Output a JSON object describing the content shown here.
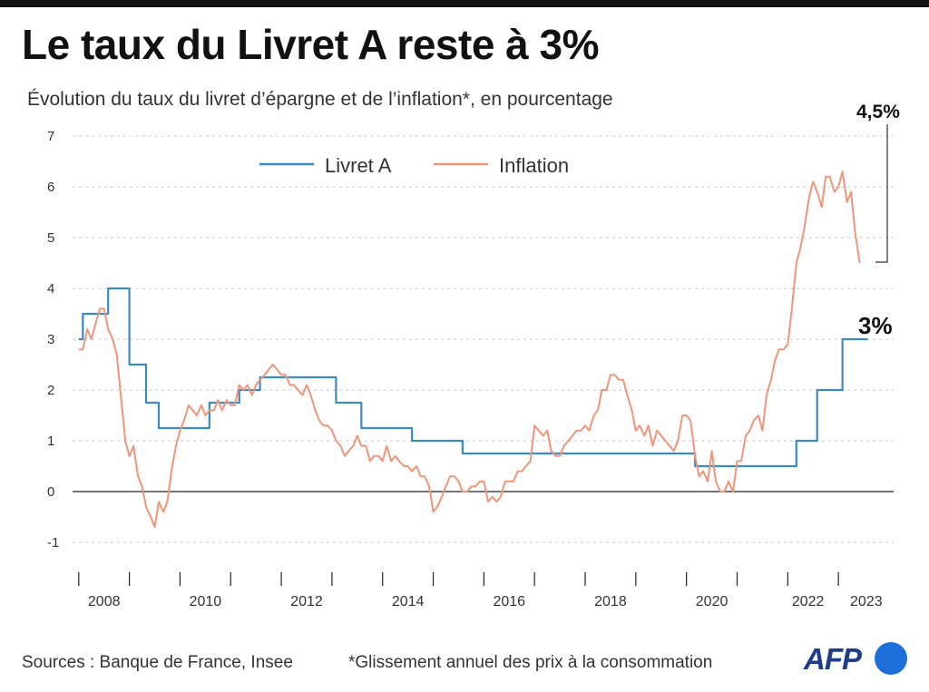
{
  "header": {
    "title": "Le taux du Livret A reste à 3%",
    "subtitle": "Évolution du taux du livret d’épargne et de l’inflation*, en pourcentage"
  },
  "colors": {
    "livret": "#3b8bc2",
    "inflation": "#f0957a",
    "grid": "#c8c8c8",
    "axis": "#222222"
  },
  "chart_data": {
    "type": "line",
    "title": "Le taux du Livret A reste à 3%",
    "subtitle": "Évolution du taux du livret d’épargne et de l’inflation*, en pourcentage",
    "xlabel": "",
    "ylabel": "",
    "xlim": [
      2007.95,
      2023.75
    ],
    "ylim": [
      -1,
      7
    ],
    "yticks": [
      -1,
      0,
      1,
      2,
      3,
      4,
      5,
      6,
      7
    ],
    "yticklabels": [
      "-1",
      "0",
      "1",
      "2",
      "3",
      "4",
      "5",
      "6",
      "7"
    ],
    "xticks": [
      2008,
      2009,
      2010,
      2011,
      2012,
      2013,
      2014,
      2015,
      2016,
      2017,
      2018,
      2019,
      2020,
      2021,
      2022,
      2023
    ],
    "xticklabels": [
      {
        "label": "2008",
        "at": 2008.5
      },
      {
        "label": "2010",
        "at": 2010.5
      },
      {
        "label": "2012",
        "at": 2012.5
      },
      {
        "label": "2014",
        "at": 2014.5
      },
      {
        "label": "2016",
        "at": 2016.5
      },
      {
        "label": "2018",
        "at": 2018.5
      },
      {
        "label": "2020",
        "at": 2020.5
      },
      {
        "label": "2022",
        "at": 2022.4
      },
      {
        "label": "2023",
        "at": 2023.55
      }
    ],
    "grid": true,
    "legend": {
      "placement": "top-left",
      "entries": [
        "Livret A",
        "Inflation"
      ]
    },
    "annotations": {
      "inflation_end": "4,5%",
      "livret_end": "3%"
    },
    "series": [
      {
        "name": "Livret A",
        "step": true,
        "points": [
          [
            2008.0,
            3.0
          ],
          [
            2008.08,
            3.5
          ],
          [
            2008.58,
            4.0
          ],
          [
            2009.0,
            2.5
          ],
          [
            2009.33,
            1.75
          ],
          [
            2009.58,
            1.25
          ],
          [
            2010.58,
            1.75
          ],
          [
            2011.17,
            2.0
          ],
          [
            2011.58,
            2.25
          ],
          [
            2013.08,
            1.75
          ],
          [
            2013.58,
            1.25
          ],
          [
            2014.58,
            1.0
          ],
          [
            2015.58,
            0.75
          ],
          [
            2020.17,
            0.5
          ],
          [
            2022.17,
            1.0
          ],
          [
            2022.58,
            2.0
          ],
          [
            2023.08,
            3.0
          ],
          [
            2023.58,
            3.0
          ]
        ]
      },
      {
        "name": "Inflation",
        "step": false,
        "points": [
          [
            2008.0,
            2.8
          ],
          [
            2008.08,
            2.8
          ],
          [
            2008.17,
            3.2
          ],
          [
            2008.25,
            3.0
          ],
          [
            2008.33,
            3.3
          ],
          [
            2008.42,
            3.6
          ],
          [
            2008.5,
            3.6
          ],
          [
            2008.58,
            3.2
          ],
          [
            2008.67,
            3.0
          ],
          [
            2008.75,
            2.7
          ],
          [
            2008.83,
            1.9
          ],
          [
            2008.92,
            1.0
          ],
          [
            2009.0,
            0.7
          ],
          [
            2009.08,
            0.9
          ],
          [
            2009.17,
            0.3
          ],
          [
            2009.25,
            0.1
          ],
          [
            2009.33,
            -0.3
          ],
          [
            2009.42,
            -0.5
          ],
          [
            2009.5,
            -0.7
          ],
          [
            2009.58,
            -0.2
          ],
          [
            2009.67,
            -0.4
          ],
          [
            2009.75,
            -0.2
          ],
          [
            2009.83,
            0.4
          ],
          [
            2009.92,
            0.9
          ],
          [
            2010.0,
            1.2
          ],
          [
            2010.08,
            1.4
          ],
          [
            2010.17,
            1.7
          ],
          [
            2010.25,
            1.6
          ],
          [
            2010.33,
            1.5
          ],
          [
            2010.42,
            1.7
          ],
          [
            2010.5,
            1.5
          ],
          [
            2010.58,
            1.6
          ],
          [
            2010.67,
            1.6
          ],
          [
            2010.75,
            1.8
          ],
          [
            2010.83,
            1.6
          ],
          [
            2010.92,
            1.8
          ],
          [
            2011.0,
            1.7
          ],
          [
            2011.08,
            1.7
          ],
          [
            2011.17,
            2.1
          ],
          [
            2011.25,
            2.0
          ],
          [
            2011.33,
            2.1
          ],
          [
            2011.42,
            1.9
          ],
          [
            2011.5,
            2.1
          ],
          [
            2011.58,
            2.2
          ],
          [
            2011.67,
            2.3
          ],
          [
            2011.75,
            2.4
          ],
          [
            2011.83,
            2.5
          ],
          [
            2011.92,
            2.4
          ],
          [
            2012.0,
            2.3
          ],
          [
            2012.08,
            2.3
          ],
          [
            2012.17,
            2.1
          ],
          [
            2012.25,
            2.1
          ],
          [
            2012.33,
            2.0
          ],
          [
            2012.42,
            1.9
          ],
          [
            2012.5,
            2.1
          ],
          [
            2012.58,
            1.9
          ],
          [
            2012.67,
            1.6
          ],
          [
            2012.75,
            1.4
          ],
          [
            2012.83,
            1.3
          ],
          [
            2012.92,
            1.3
          ],
          [
            2013.0,
            1.2
          ],
          [
            2013.08,
            1.0
          ],
          [
            2013.17,
            0.9
          ],
          [
            2013.25,
            0.7
          ],
          [
            2013.33,
            0.8
          ],
          [
            2013.42,
            0.9
          ],
          [
            2013.5,
            1.1
          ],
          [
            2013.58,
            0.9
          ],
          [
            2013.67,
            0.9
          ],
          [
            2013.75,
            0.6
          ],
          [
            2013.83,
            0.7
          ],
          [
            2013.92,
            0.7
          ],
          [
            2014.0,
            0.6
          ],
          [
            2014.08,
            0.9
          ],
          [
            2014.17,
            0.6
          ],
          [
            2014.25,
            0.7
          ],
          [
            2014.33,
            0.6
          ],
          [
            2014.42,
            0.5
          ],
          [
            2014.5,
            0.5
          ],
          [
            2014.58,
            0.4
          ],
          [
            2014.67,
            0.5
          ],
          [
            2014.75,
            0.3
          ],
          [
            2014.83,
            0.3
          ],
          [
            2014.92,
            0.1
          ],
          [
            2015.0,
            -0.4
          ],
          [
            2015.08,
            -0.3
          ],
          [
            2015.17,
            -0.1
          ],
          [
            2015.25,
            0.1
          ],
          [
            2015.33,
            0.3
          ],
          [
            2015.42,
            0.3
          ],
          [
            2015.5,
            0.2
          ],
          [
            2015.58,
            0.0
          ],
          [
            2015.67,
            0.0
          ],
          [
            2015.75,
            0.1
          ],
          [
            2015.83,
            0.1
          ],
          [
            2015.92,
            0.2
          ],
          [
            2016.0,
            0.2
          ],
          [
            2016.08,
            -0.2
          ],
          [
            2016.17,
            -0.1
          ],
          [
            2016.25,
            -0.2
          ],
          [
            2016.33,
            -0.1
          ],
          [
            2016.42,
            0.2
          ],
          [
            2016.5,
            0.2
          ],
          [
            2016.58,
            0.2
          ],
          [
            2016.67,
            0.4
          ],
          [
            2016.75,
            0.4
          ],
          [
            2016.83,
            0.5
          ],
          [
            2016.92,
            0.6
          ],
          [
            2017.0,
            1.3
          ],
          [
            2017.08,
            1.2
          ],
          [
            2017.17,
            1.1
          ],
          [
            2017.25,
            1.2
          ],
          [
            2017.33,
            0.8
          ],
          [
            2017.42,
            0.7
          ],
          [
            2017.5,
            0.7
          ],
          [
            2017.58,
            0.9
          ],
          [
            2017.67,
            1.0
          ],
          [
            2017.75,
            1.1
          ],
          [
            2017.83,
            1.2
          ],
          [
            2017.92,
            1.2
          ],
          [
            2018.0,
            1.3
          ],
          [
            2018.08,
            1.2
          ],
          [
            2018.17,
            1.5
          ],
          [
            2018.25,
            1.6
          ],
          [
            2018.33,
            2.0
          ],
          [
            2018.42,
            2.0
          ],
          [
            2018.5,
            2.3
          ],
          [
            2018.58,
            2.3
          ],
          [
            2018.67,
            2.2
          ],
          [
            2018.75,
            2.2
          ],
          [
            2018.83,
            1.9
          ],
          [
            2018.92,
            1.6
          ],
          [
            2019.0,
            1.2
          ],
          [
            2019.08,
            1.3
          ],
          [
            2019.17,
            1.1
          ],
          [
            2019.25,
            1.3
          ],
          [
            2019.33,
            0.9
          ],
          [
            2019.42,
            1.2
          ],
          [
            2019.5,
            1.1
          ],
          [
            2019.58,
            1.0
          ],
          [
            2019.67,
            0.9
          ],
          [
            2019.75,
            0.8
          ],
          [
            2019.83,
            1.0
          ],
          [
            2019.92,
            1.5
          ],
          [
            2020.0,
            1.5
          ],
          [
            2020.08,
            1.4
          ],
          [
            2020.17,
            0.7
          ],
          [
            2020.25,
            0.3
          ],
          [
            2020.33,
            0.4
          ],
          [
            2020.42,
            0.2
          ],
          [
            2020.5,
            0.8
          ],
          [
            2020.58,
            0.2
          ],
          [
            2020.67,
            0.0
          ],
          [
            2020.75,
            0.0
          ],
          [
            2020.83,
            0.2
          ],
          [
            2020.92,
            0.0
          ],
          [
            2021.0,
            0.6
          ],
          [
            2021.08,
            0.6
          ],
          [
            2021.17,
            1.1
          ],
          [
            2021.25,
            1.2
          ],
          [
            2021.33,
            1.4
          ],
          [
            2021.42,
            1.5
          ],
          [
            2021.5,
            1.2
          ],
          [
            2021.58,
            1.9
          ],
          [
            2021.67,
            2.2
          ],
          [
            2021.75,
            2.6
          ],
          [
            2021.83,
            2.8
          ],
          [
            2021.92,
            2.8
          ],
          [
            2022.0,
            2.9
          ],
          [
            2022.08,
            3.6
          ],
          [
            2022.17,
            4.5
          ],
          [
            2022.25,
            4.8
          ],
          [
            2022.33,
            5.2
          ],
          [
            2022.42,
            5.8
          ],
          [
            2022.5,
            6.1
          ],
          [
            2022.58,
            5.9
          ],
          [
            2022.67,
            5.6
          ],
          [
            2022.75,
            6.2
          ],
          [
            2022.83,
            6.2
          ],
          [
            2022.92,
            5.9
          ],
          [
            2023.0,
            6.0
          ],
          [
            2023.08,
            6.3
          ],
          [
            2023.17,
            5.7
          ],
          [
            2023.25,
            5.9
          ],
          [
            2023.33,
            5.1
          ],
          [
            2023.42,
            4.5
          ]
        ]
      }
    ]
  },
  "footer": {
    "sources": "Sources : Banque de France, Insee",
    "note": "*Glissement annuel des prix à la consommation",
    "logo": "AFP"
  }
}
